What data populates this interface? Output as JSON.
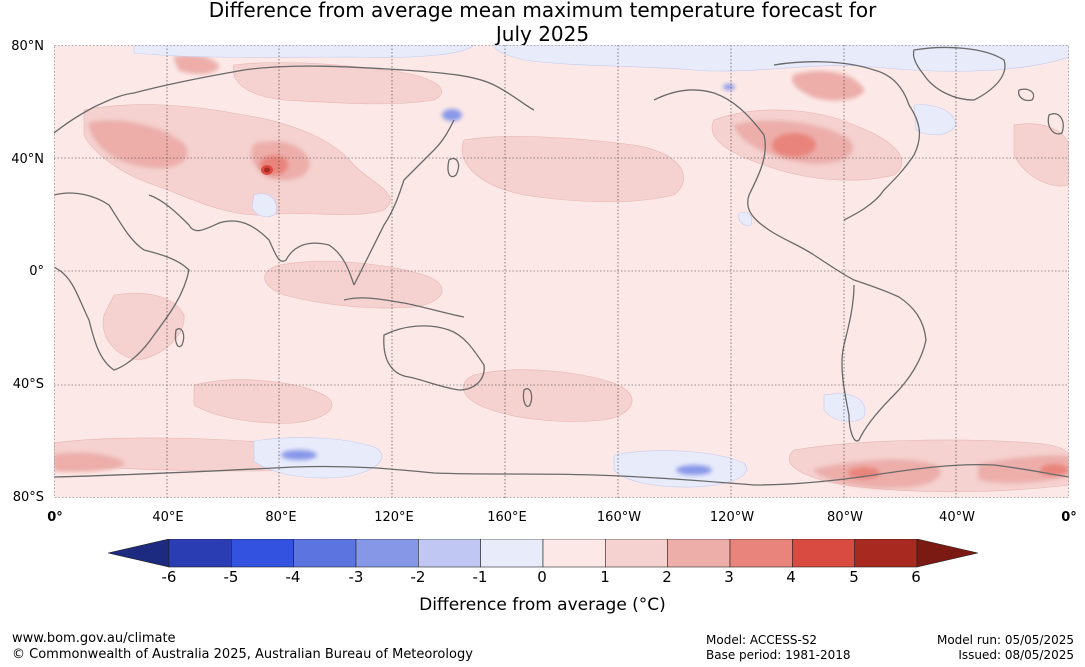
{
  "title_line1": "Difference from average mean maximum temperature forecast for",
  "title_line2": "July 2025",
  "lat_labels": [
    "80°N",
    "40°N",
    "0°",
    "40°S",
    "80°S"
  ],
  "lon_labels": [
    "0°",
    "40°E",
    "80°E",
    "120°E",
    "160°E",
    "160°W",
    "120°W",
    "80°W",
    "40°W",
    "0°"
  ],
  "colorbar": {
    "label": "Difference from average (°C)",
    "ticks": [
      "-6",
      "-5",
      "-4",
      "-3",
      "-2",
      "-1",
      "0",
      "1",
      "2",
      "3",
      "4",
      "5",
      "6"
    ],
    "colors": {
      "below_min": "#1c2a80",
      "bins": [
        "#2a3db3",
        "#3352e0",
        "#5c74e0",
        "#8797e8",
        "#bfc7f2",
        "#e8ebfa",
        "#fce9e7",
        "#f5d1cf",
        "#edaeaa",
        "#e8847c",
        "#d94b40",
        "#a8291f"
      ],
      "above_max": "#7a1a12"
    }
  },
  "footer": {
    "website": "www.bom.gov.au/climate",
    "copyright": "© Commonwealth of Australia 2025, Australian Bureau of Meteorology",
    "model": "Model: ACCESS-S2",
    "base_period": "Base period: 1981-2018",
    "model_run": "Model run: 05/05/2025",
    "issued": "Issued: 08/05/2025"
  }
}
